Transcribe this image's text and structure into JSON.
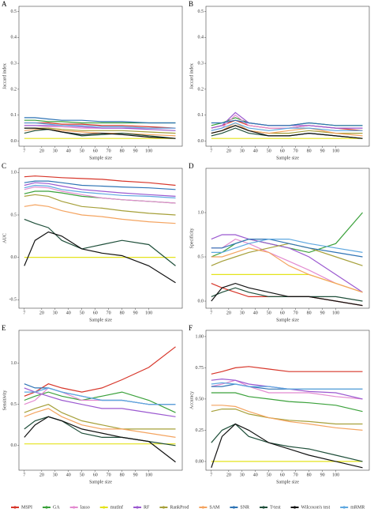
{
  "legend": [
    {
      "name": "MSPI",
      "color": "#d7362a"
    },
    {
      "name": "GA",
      "color": "#3ba13b"
    },
    {
      "name": "lasso",
      "color": "#e38bd0"
    },
    {
      "name": "mutInf",
      "color": "#e4e31c"
    },
    {
      "name": "RF",
      "color": "#9b59d0"
    },
    {
      "name": "RankProd",
      "color": "#a6a03a"
    },
    {
      "name": "SAM",
      "color": "#f4a460"
    },
    {
      "name": "SNR",
      "color": "#2f74b5"
    },
    {
      "name": "T-test",
      "color": "#1f4f3a"
    },
    {
      "name": "Wilcoxon's test",
      "color": "#111111"
    },
    {
      "name": "mRMR",
      "color": "#5fa8e0"
    }
  ],
  "chart_data": [
    {
      "type": "line",
      "label": "A",
      "y_label": "Jaccard index",
      "x_label": "Sample size",
      "x": [
        7,
        15,
        25,
        35,
        50,
        65,
        80,
        100,
        120
      ],
      "xlim": [
        3,
        125
      ],
      "xticks": [
        7,
        20,
        30,
        40,
        50,
        60,
        70,
        80,
        90,
        100
      ],
      "ylim": [
        -0.02,
        0.52
      ],
      "yticks": [
        {
          "value": 0,
          "label": "0.0"
        },
        0.1,
        0.2,
        0.3,
        0.4,
        0.5
      ],
      "series": [
        {
          "values": [
            0.07,
            0.07,
            0.07,
            0.065,
            0.065,
            0.06,
            0.06,
            0.055,
            0.05
          ]
        },
        {
          "values": [
            0.08,
            0.08,
            0.075,
            0.075,
            0.07,
            0.07,
            0.07,
            0.07,
            0.07
          ]
        },
        {
          "values": [
            0.06,
            0.06,
            0.055,
            0.055,
            0.05,
            0.05,
            0.05,
            0.05,
            0.05
          ]
        },
        {
          "values": [
            0.01,
            0.01,
            0.01,
            0.01,
            0.01,
            0.01,
            0.01,
            0.01,
            0.01
          ]
        },
        {
          "values": [
            0.06,
            0.06,
            0.06,
            0.06,
            0.055,
            0.05,
            0.05,
            0.045,
            0.04
          ]
        },
        {
          "values": [
            0.05,
            0.05,
            0.05,
            0.045,
            0.04,
            0.04,
            0.04,
            0.035,
            0.03
          ]
        },
        {
          "values": [
            0.04,
            0.045,
            0.045,
            0.04,
            0.035,
            0.03,
            0.03,
            0.025,
            0.02
          ]
        },
        {
          "values": [
            0.09,
            0.09,
            0.085,
            0.08,
            0.08,
            0.075,
            0.075,
            0.07,
            0.07
          ]
        },
        {
          "values": [
            0.03,
            0.04,
            0.045,
            0.035,
            0.02,
            0.025,
            0.03,
            0.02,
            0.01
          ]
        },
        {
          "values": [
            0.05,
            0.05,
            0.045,
            0.035,
            0.025,
            0.03,
            0.025,
            0.015,
            0.01
          ]
        },
        {
          "values": [
            0.07,
            0.07,
            0.065,
            0.06,
            0.06,
            0.055,
            0.055,
            0.05,
            0.05
          ]
        }
      ]
    },
    {
      "type": "line",
      "label": "B",
      "y_label": "Jaccard index",
      "x_label": "Sample size",
      "x": [
        7,
        15,
        25,
        35,
        50,
        65,
        80,
        100,
        120
      ],
      "xlim": [
        3,
        125
      ],
      "xticks": [
        7,
        20,
        30,
        40,
        50,
        60,
        70,
        80,
        90,
        100
      ],
      "ylim": [
        -0.02,
        0.52
      ],
      "yticks": [
        {
          "value": 0,
          "label": "0.0"
        },
        0.1,
        0.2,
        0.3,
        0.4,
        0.5
      ],
      "series": [
        {
          "values": [
            0.05,
            0.06,
            0.08,
            0.06,
            0.05,
            0.05,
            0.06,
            0.05,
            0.04
          ]
        },
        {
          "values": [
            0.06,
            0.07,
            0.09,
            0.07,
            0.06,
            0.06,
            0.07,
            0.06,
            0.06
          ]
        },
        {
          "values": [
            0.04,
            0.05,
            0.1,
            0.06,
            0.05,
            0.05,
            0.06,
            0.05,
            0.05
          ]
        },
        {
          "values": [
            0.01,
            0.01,
            0.01,
            0.01,
            0.01,
            0.01,
            0.01,
            0.01,
            0.01
          ]
        },
        {
          "values": [
            0.05,
            0.06,
            0.11,
            0.07,
            0.06,
            0.06,
            0.06,
            0.05,
            0.05
          ]
        },
        {
          "values": [
            0.03,
            0.04,
            0.06,
            0.04,
            0.03,
            0.03,
            0.04,
            0.03,
            0.03
          ]
        },
        {
          "values": [
            0.03,
            0.04,
            0.07,
            0.04,
            0.03,
            0.04,
            0.05,
            0.03,
            0.02
          ]
        },
        {
          "values": [
            0.07,
            0.07,
            0.08,
            0.07,
            0.06,
            0.06,
            0.07,
            0.06,
            0.06
          ]
        },
        {
          "values": [
            0.02,
            0.03,
            0.05,
            0.03,
            0.02,
            0.02,
            0.03,
            0.02,
            0.01
          ]
        },
        {
          "values": [
            0.03,
            0.04,
            0.06,
            0.04,
            0.02,
            0.02,
            0.03,
            0.02,
            0.01
          ]
        },
        {
          "values": [
            0.04,
            0.05,
            0.07,
            0.05,
            0.04,
            0.05,
            0.05,
            0.04,
            0.04
          ]
        }
      ]
    },
    {
      "type": "line",
      "label": "C",
      "y_label": "AUC",
      "x_label": "Sample size",
      "x": [
        7,
        15,
        25,
        35,
        50,
        65,
        80,
        100,
        120
      ],
      "xlim": [
        3,
        125
      ],
      "xticks": [
        7,
        20,
        30,
        40,
        50,
        60,
        70,
        80,
        90,
        100
      ],
      "ylim": [
        -0.6,
        1.05
      ],
      "yticks": [
        -0.5,
        {
          "value": 0,
          "label": "0.0"
        },
        0.5,
        {
          "value": 1,
          "label": "1.0"
        }
      ],
      "series": [
        {
          "values": [
            0.95,
            0.96,
            0.95,
            0.94,
            0.93,
            0.92,
            0.9,
            0.88,
            0.85
          ]
        },
        {
          "values": [
            0.75,
            0.78,
            0.78,
            0.76,
            0.72,
            0.7,
            0.68,
            0.66,
            0.64
          ]
        },
        {
          "values": [
            0.8,
            0.83,
            0.82,
            0.78,
            0.74,
            0.7,
            0.68,
            0.66,
            0.64
          ]
        },
        {
          "values": [
            0,
            0,
            0,
            0,
            0,
            0,
            0,
            0,
            0
          ]
        },
        {
          "values": [
            0.85,
            0.88,
            0.87,
            0.84,
            0.8,
            0.78,
            0.76,
            0.74,
            0.72
          ]
        },
        {
          "values": [
            0.72,
            0.74,
            0.72,
            0.66,
            0.6,
            0.58,
            0.55,
            0.52,
            0.5
          ]
        },
        {
          "values": [
            0.6,
            0.62,
            0.6,
            0.55,
            0.5,
            0.48,
            0.45,
            0.42,
            0.4
          ]
        },
        {
          "values": [
            0.88,
            0.9,
            0.9,
            0.88,
            0.85,
            0.84,
            0.83,
            0.82,
            0.8
          ]
        },
        {
          "values": [
            0.45,
            0.4,
            0.35,
            0.2,
            0.1,
            0.15,
            0.2,
            0.15,
            -0.1
          ]
        },
        {
          "values": [
            -0.1,
            0.2,
            0.3,
            0.25,
            0.1,
            0.05,
            0.02,
            -0.1,
            -0.3
          ]
        },
        {
          "values": [
            0.82,
            0.85,
            0.84,
            0.8,
            0.77,
            0.75,
            0.73,
            0.72,
            0.7
          ]
        }
      ]
    },
    {
      "type": "line",
      "label": "D",
      "y_label": "Specificity",
      "x_label": "Sample size",
      "x": [
        7,
        15,
        25,
        35,
        50,
        65,
        80,
        100,
        120
      ],
      "xlim": [
        3,
        125
      ],
      "xticks": [
        7,
        20,
        30,
        40,
        50,
        60,
        70,
        80,
        90,
        100
      ],
      "ylim": [
        -0.08,
        1.5
      ],
      "yticks": [
        {
          "value": 0,
          "label": "0.0"
        },
        0.5,
        {
          "value": 1,
          "label": "1.0"
        }
      ],
      "series": [
        {
          "values": [
            0.2,
            0.15,
            0.1,
            0.05,
            0.05,
            0.05,
            0.05,
            0,
            -0.05
          ]
        },
        {
          "values": [
            0.5,
            0.55,
            0.65,
            0.7,
            0.65,
            0.6,
            0.55,
            0.65,
            1.0
          ]
        },
        {
          "values": [
            0.6,
            0.6,
            0.7,
            0.65,
            0.55,
            0.45,
            0.35,
            0.2,
            0.1
          ]
        },
        {
          "values": [
            0.3,
            0.3,
            0.3,
            0.3,
            0.3,
            0.3,
            0.3,
            0.2,
            0.1
          ]
        },
        {
          "values": [
            0.7,
            0.75,
            0.75,
            0.7,
            0.65,
            0.6,
            0.5,
            0.3,
            0.1
          ]
        },
        {
          "values": [
            0.4,
            0.45,
            0.5,
            0.55,
            0.6,
            0.65,
            0.6,
            0.5,
            0.4
          ]
        },
        {
          "values": [
            0.5,
            0.5,
            0.55,
            0.6,
            0.55,
            0.4,
            0.3,
            0.2,
            0.1
          ]
        },
        {
          "values": [
            0.6,
            0.6,
            0.65,
            0.7,
            0.7,
            0.65,
            0.6,
            0.55,
            0.5
          ]
        },
        {
          "values": [
            0.05,
            0.1,
            0.15,
            0.1,
            0.05,
            0.05,
            0.05,
            0.05,
            0
          ]
        },
        {
          "values": [
            0,
            0.15,
            0.2,
            0.15,
            0.1,
            0.05,
            0.05,
            0,
            -0.05
          ]
        },
        {
          "values": [
            0.55,
            0.55,
            0.6,
            0.65,
            0.7,
            0.7,
            0.65,
            0.6,
            0.55
          ]
        }
      ]
    },
    {
      "type": "line",
      "label": "E",
      "y_label": "Sensitivity",
      "x_label": "Sample size",
      "x": [
        7,
        15,
        25,
        35,
        50,
        65,
        80,
        100,
        120
      ],
      "xlim": [
        3,
        125
      ],
      "xticks": [
        7,
        20,
        30,
        40,
        50,
        60,
        70,
        80,
        90,
        100
      ],
      "ylim": [
        -0.3,
        1.4
      ],
      "yticks": [
        {
          "value": 0,
          "label": "0.0"
        },
        0.5,
        {
          "value": 1,
          "label": "1.0"
        }
      ],
      "series": [
        {
          "values": [
            0.6,
            0.65,
            0.75,
            0.7,
            0.65,
            0.7,
            0.8,
            0.95,
            1.2
          ]
        },
        {
          "values": [
            0.55,
            0.6,
            0.65,
            0.6,
            0.55,
            0.6,
            0.65,
            0.55,
            0.4
          ]
        },
        {
          "values": [
            0.5,
            0.55,
            0.7,
            0.65,
            0.55,
            0.55,
            0.55,
            0.5,
            0.5
          ]
        },
        {
          "values": [
            0.02,
            0.02,
            0.02,
            0.02,
            0.02,
            0.02,
            0.02,
            0.02,
            0.02
          ]
        },
        {
          "values": [
            0.7,
            0.65,
            0.6,
            0.55,
            0.5,
            0.45,
            0.45,
            0.4,
            0.35
          ]
        },
        {
          "values": [
            0.4,
            0.45,
            0.5,
            0.4,
            0.3,
            0.25,
            0.2,
            0.2,
            0.2
          ]
        },
        {
          "values": [
            0.35,
            0.4,
            0.45,
            0.35,
            0.25,
            0.2,
            0.2,
            0.15,
            0.1
          ]
        },
        {
          "values": [
            0.75,
            0.7,
            0.7,
            0.65,
            0.6,
            0.55,
            0.55,
            0.5,
            0.5
          ]
        },
        {
          "values": [
            0.2,
            0.3,
            0.35,
            0.3,
            0.15,
            0.1,
            0.1,
            0.05,
            0
          ]
        },
        {
          "values": [
            0.1,
            0.25,
            0.35,
            0.3,
            0.2,
            0.15,
            0.1,
            0.05,
            -0.2
          ]
        },
        {
          "values": [
            0.65,
            0.65,
            0.7,
            0.65,
            0.6,
            0.55,
            0.55,
            0.5,
            0.5
          ]
        }
      ]
    },
    {
      "type": "line",
      "label": "F",
      "y_label": "Accuracy",
      "x_label": "Sample size",
      "x": [
        7,
        15,
        25,
        35,
        50,
        65,
        80,
        100,
        120
      ],
      "xlim": [
        3,
        125
      ],
      "xticks": [
        7,
        20,
        30,
        40,
        50,
        60,
        70,
        80,
        90,
        100
      ],
      "ylim": [
        -0.07,
        1.05
      ],
      "yticks": [
        {
          "value": 0,
          "label": "0.00"
        },
        0.25,
        {
          "value": 0.5,
          "label": "0.50"
        },
        0.75,
        {
          "value": 1,
          "label": "1.00"
        }
      ],
      "series": [
        {
          "values": [
            0.7,
            0.72,
            0.75,
            0.76,
            0.74,
            0.72,
            0.72,
            0.72,
            0.72
          ]
        },
        {
          "values": [
            0.55,
            0.55,
            0.55,
            0.52,
            0.5,
            0.48,
            0.47,
            0.45,
            0.4
          ]
        },
        {
          "values": [
            0.6,
            0.62,
            0.65,
            0.6,
            0.55,
            0.55,
            0.55,
            0.52,
            0.5
          ]
        },
        {
          "values": [
            0,
            0,
            0,
            0,
            0,
            0,
            0,
            0,
            0
          ]
        },
        {
          "values": [
            0.65,
            0.66,
            0.65,
            0.62,
            0.6,
            0.58,
            0.56,
            0.55,
            0.5
          ]
        },
        {
          "values": [
            0.4,
            0.42,
            0.42,
            0.38,
            0.35,
            0.33,
            0.32,
            0.3,
            0.3
          ]
        },
        {
          "values": [
            0.45,
            0.45,
            0.44,
            0.4,
            0.35,
            0.32,
            0.3,
            0.27,
            0.25
          ]
        },
        {
          "values": [
            0.6,
            0.6,
            0.62,
            0.6,
            0.58,
            0.58,
            0.58,
            0.58,
            0.58
          ]
        },
        {
          "values": [
            0.15,
            0.25,
            0.3,
            0.2,
            0.15,
            0.12,
            0.1,
            0.05,
            0
          ]
        },
        {
          "values": [
            -0.05,
            0.2,
            0.3,
            0.25,
            0.15,
            0.1,
            0.05,
            0,
            -0.05
          ]
        },
        {
          "values": [
            0.62,
            0.63,
            0.62,
            0.6,
            0.6,
            0.58,
            0.58,
            0.58,
            0.58
          ]
        }
      ]
    }
  ]
}
